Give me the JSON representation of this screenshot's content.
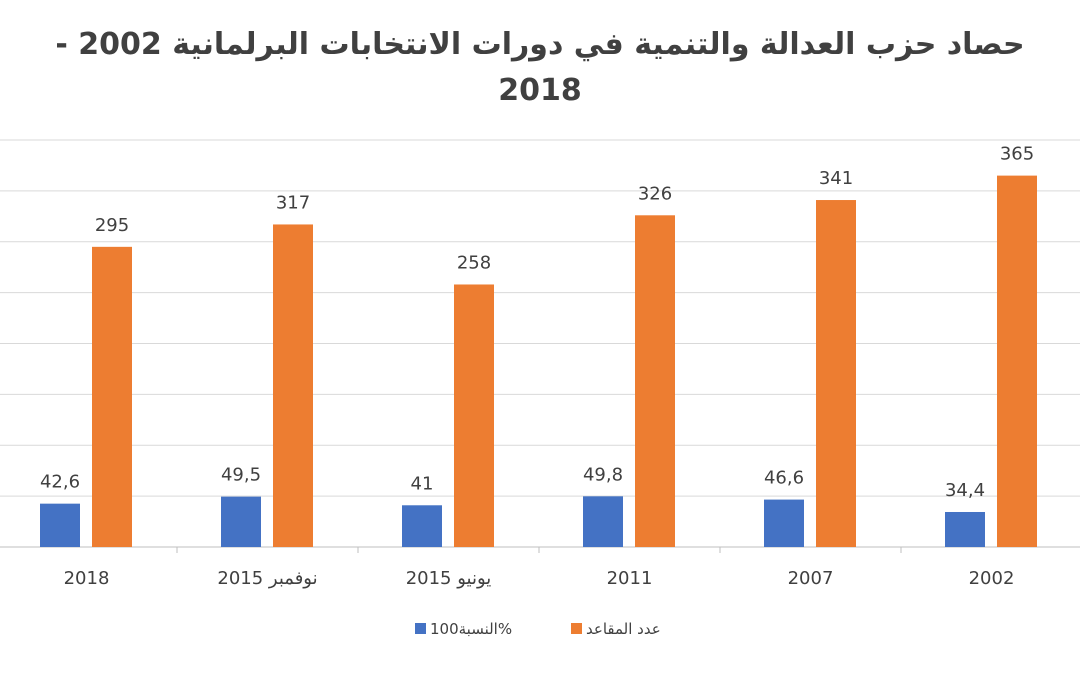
{
  "chart_data": {
    "type": "bar",
    "title_line1": "حصاد حزب العدالة والتنمية في دورات الانتخابات البرلمانية 2002 -",
    "title_line2": "2018",
    "categories": [
      "2018",
      "2015 نوفمبر",
      "2015 يونيو",
      "2011",
      "2007",
      "2002"
    ],
    "series": [
      {
        "name": "النسبة100%",
        "color": "#4472C4",
        "values": [
          42.6,
          49.5,
          41,
          49.8,
          46.6,
          34.4
        ],
        "labels": [
          "42,6",
          "49,5",
          "41",
          "49,8",
          "46,6",
          "34,4"
        ]
      },
      {
        "name": "عدد المقاعد",
        "color": "#ED7D31",
        "values": [
          295,
          317,
          258,
          326,
          341,
          365
        ],
        "labels": [
          "295",
          "317",
          "258",
          "326",
          "341",
          "365"
        ]
      }
    ],
    "ylim": [
      0,
      400
    ],
    "grid": true,
    "legend_position": "bottom"
  }
}
